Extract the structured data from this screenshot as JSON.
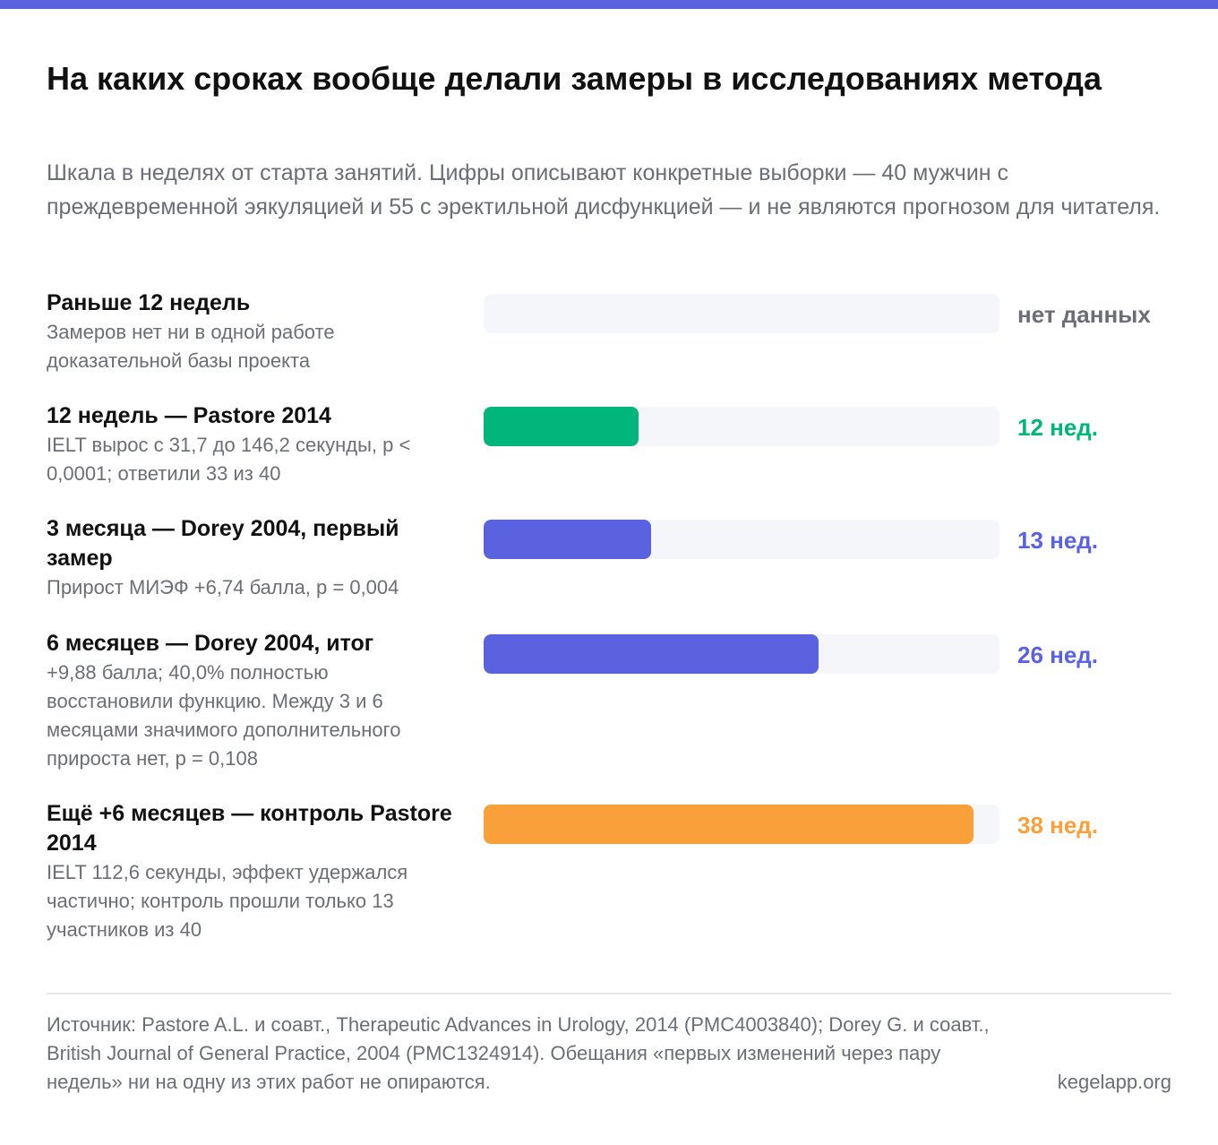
{
  "title": "На каких сроках вообще делали замеры в исследованиях метода",
  "subtitle": "Шкала в неделях от старта занятий. Цифры описывают конкретные выборки — 40 мужчин с преждевременной эякуляцией и 55 с эректильной дисфункцией — и не являются прогнозом для читателя.",
  "chart_data": {
    "type": "bar",
    "orientation": "horizontal",
    "unit": "weeks",
    "xlim": [
      0,
      40
    ],
    "grid": false,
    "categories": [
      "Раньше 12 недель",
      "12 недель — Pastore 2014",
      "3 месяца — Dorey 2004, первый замер",
      "6 месяцев — Dorey 2004, итог",
      "Ещё +6 месяцев — контроль Pastore 2014"
    ],
    "values": [
      null,
      12,
      13,
      26,
      38
    ],
    "value_labels": [
      "нет данных",
      "12 нед.",
      "13 нед.",
      "26 нед.",
      "38 нед."
    ],
    "descriptions": [
      "Замеров нет ни в одной работе доказательной базы проекта",
      "IELT вырос с 31,7 до 146,2 секунды, p < 0,0001; ответили 33 из 40",
      "Прирост МИЭФ +6,74 балла, p = 0,004",
      "+9,88 балла; 40,0% полностью восстановили функцию. Между 3 и 6 месяцами значимого дополнительного прироста нет, p = 0,108",
      "IELT 112,6 секунды, эффект удержался частично; контроль прошли только 13 участников из 40"
    ],
    "colors": [
      "#6b6e75",
      "#00b67a",
      "#5b62e0",
      "#5b62e0",
      "#f9a03a"
    ]
  },
  "colors": {
    "accent": "#5b62e0",
    "track": "#f5f6f9",
    "text_muted": "#6b6e75"
  },
  "footer": {
    "source": "Источник: Pastore A.L. и соавт., Therapeutic Advances in Urology, 2014 (PMC4003840); Dorey G. и соавт., British Journal of General Practice, 2004 (PMC1324914). Обещания «первых изменений через пару недель» ни на одну из этих работ не опираются.",
    "site": "kegelapp.org"
  }
}
